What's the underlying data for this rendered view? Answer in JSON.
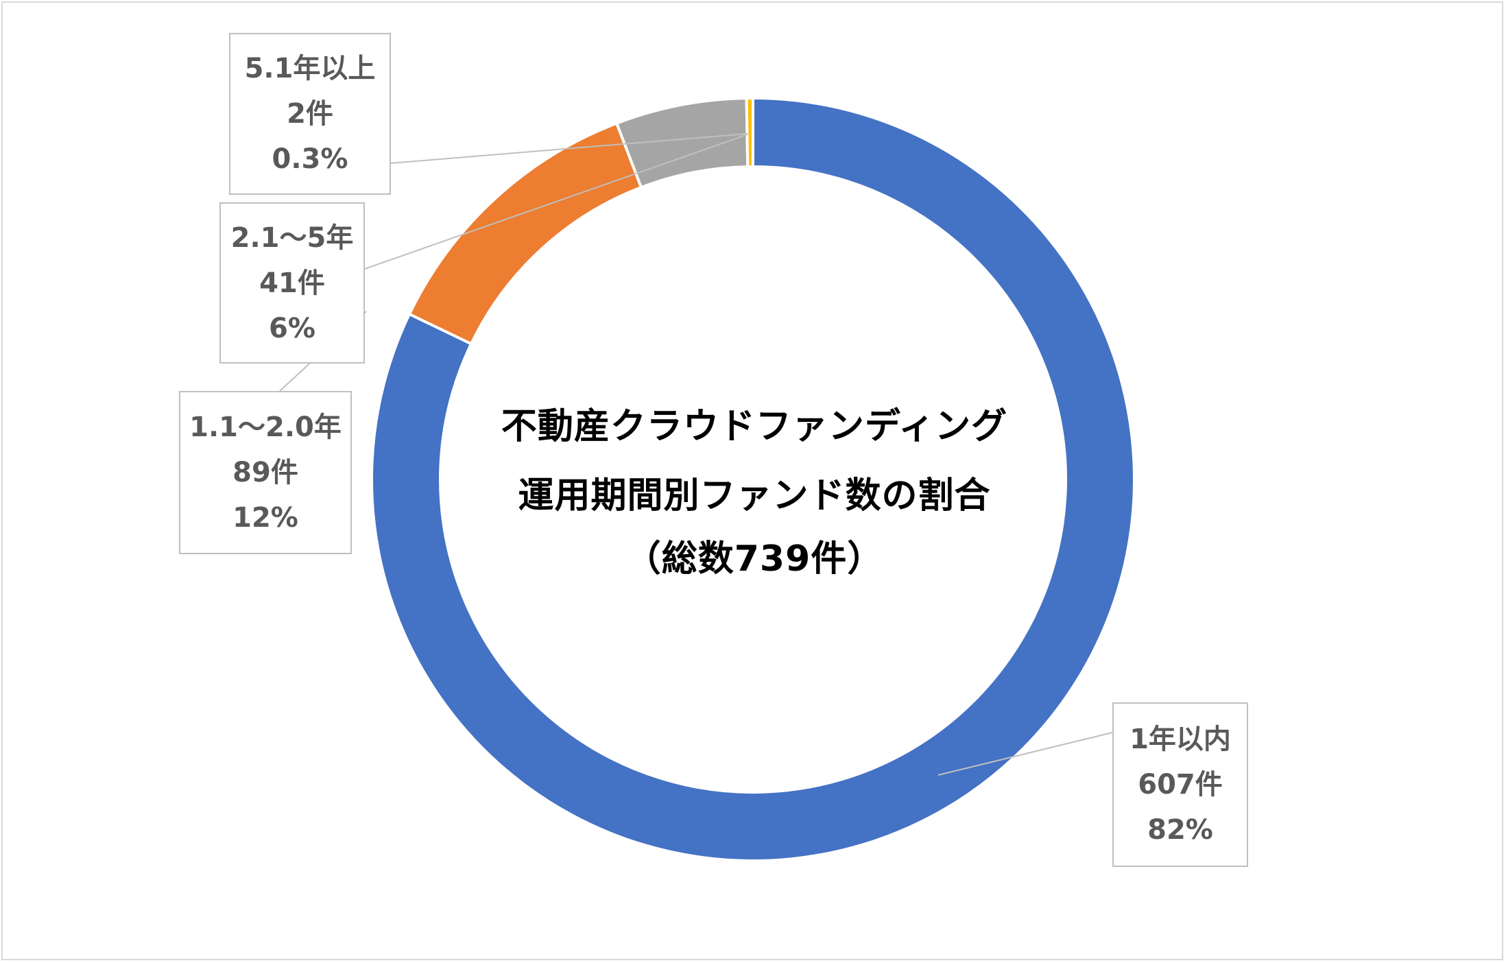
{
  "chart_data": {
    "type": "pie",
    "donut": true,
    "title_lines": [
      "不動産クラウドファンディング",
      "運用期間別ファンド数の割合",
      "（総数739件）"
    ],
    "series": [
      {
        "slices": [
          {
            "label": "1年以内",
            "count": 607,
            "count_text": "607件",
            "percent": 82,
            "percent_text": "82%",
            "color": "#4472c4"
          },
          {
            "label": "1.1～2.0年",
            "count": 89,
            "count_text": "89件",
            "percent": 12,
            "percent_text": "12%",
            "color": "#ed7d31"
          },
          {
            "label": "2.1～5年",
            "count": 41,
            "count_text": "41件",
            "percent": 6,
            "percent_text": "6%",
            "color": "#a5a5a5"
          },
          {
            "label": "5.1年以上",
            "count": 2,
            "count_text": "2件",
            "percent": 0.3,
            "percent_text": "0.3%",
            "color": "#ffc000"
          }
        ]
      }
    ],
    "total": 739,
    "legend": "none",
    "data_labels": "callouts"
  }
}
